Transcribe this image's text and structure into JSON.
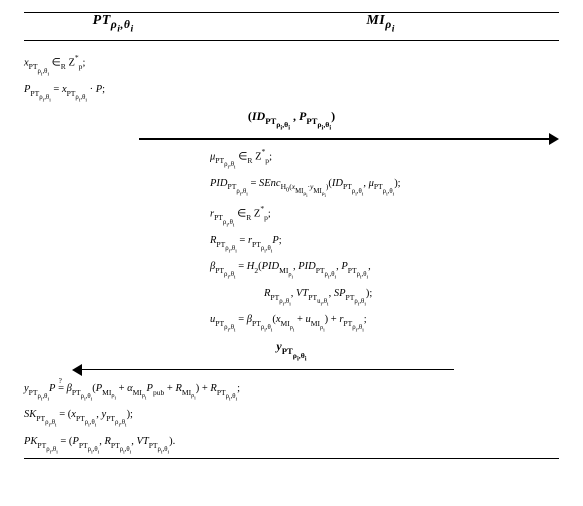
{
  "header": {
    "col1": "PT<sub>ρ<sub>i</sub>,θ<sub>i</sub></sub>",
    "col2": "MI<sub>ρ<sub>i</sub></sub>"
  },
  "lines": {
    "l1": "<i>x</i><span class='sub'>PT<span class='sub'>ρ<sub>i</sub>,θ<sub>i</sub></span></span>&nbsp;∈<span class='sub'>R</span>&nbsp;Z<span class='sup'>*</span><span class='sub'>p</span>;",
    "l2": "<i>P</i><span class='sub'>PT<span class='sub'>ρ<sub>i</sub>,θ<sub>i</sub></span></span>&nbsp;=&nbsp;<i>x</i><span class='sub'>PT<span class='sub'>ρ<sub>i</sub>,θ<sub>i</sub></span></span>&nbsp;·&nbsp;<i>P</i>;",
    "arrow1_label": "(<i>ID</i><span class='sub'>PT<span class='sub'>ρ<sub>i</sub>,θ<sub>i</sub></span></span>&nbsp;,&nbsp;<i>P</i><span class='sub'>PT<span class='sub'>ρ<sub>i</sub>,θ<sub>i</sub></span></span>)",
    "r1": "<i>μ</i><span class='sub'>PT<span class='sub'>ρ<sub>i</sub>,θ<sub>i</sub></span></span>&nbsp;∈<span class='sub'>R</span>&nbsp;Z<span class='sup'>*</span><span class='sub'>p</span>;",
    "r2": "<i>PID</i><span class='sub'>PT<span class='sub'>ρ<sub>i</sub>,θ<sub>i</sub></span></span>&nbsp;=&nbsp;<i>SEnc</i><span class='sub'>H<sub>0</sub>(<i>x</i><span class='sub'>MI<sub>ρ<sub>i</sub></sub></span>·<i>y</i><span class='sub'>MI<sub>ρ<sub>i</sub></sub></span>)</span>(<i>ID</i><span class='sub'>PT<span class='sub'>ρ<sub>i</sub>,θ<sub>i</sub></span></span>,&nbsp;<i>μ</i><span class='sub'>PT<span class='sub'>ρ<sub>i</sub>,θ<sub>i</sub></span></span>);",
    "r3": "<i>r</i><span class='sub'>PT<span class='sub'>ρ<sub>i</sub>,θ<sub>i</sub></span></span>&nbsp;∈<span class='sub'>R</span>&nbsp;Z<span class='sup'>*</span><span class='sub'>p</span>;",
    "r4": "<i>R</i><span class='sub'>PT<span class='sub'>ρ<sub>i</sub>,θ<sub>i</sub></span></span>&nbsp;=&nbsp;<i>r</i><span class='sub'>PT<span class='sub'>ρ<sub>i</sub>,θ<sub>i</sub></span></span><i>P</i>;",
    "r5": "<i>β</i><span class='sub'>PT<span class='sub'>ρ<sub>i</sub>,θ<sub>i</sub></span></span>&nbsp;=&nbsp;<i>H</i><span class='sub'>2</span>(<i>PID</i><span class='sub'>MI<sub>ρ<sub>i</sub></sub></span>,&nbsp;<i>PID</i><span class='sub'>PT<span class='sub'>ρ<sub>i</sub>,θ<sub>i</sub></span></span>,&nbsp;<i>P</i><span class='sub'>PT<span class='sub'>ρ<sub>i</sub>,θ<sub>i</sub></span></span>,",
    "r5b": "<i>R</i><span class='sub'>PT<span class='sub'>ρ<sub>i</sub>,θ<sub>i</sub></span></span>,&nbsp;<i>VT</i><span class='sub'>PT<span class='sub'>u<sub>i</sub>,θ<sub>i</sub></span></span>,&nbsp;<i>SP</i><span class='sub'>PT<span class='sub'>ρ<sub>i</sub>,θ<sub>i</sub></span></span>);",
    "r6": "<i>u</i><span class='sub'>PT<span class='sub'>ρ<sub>i</sub>,θ<sub>i</sub></span></span>&nbsp;=&nbsp;<i>β</i><span class='sub'>PT<span class='sub'>ρ<sub>i</sub>,θ<sub>i</sub></span></span>(<i>x</i><span class='sub'>MI<sub>ρ<sub>i</sub></sub></span>&nbsp;+&nbsp;<i>u</i><span class='sub'>MI<sub>ρ<sub>i</sub></sub></span>)&nbsp;+&nbsp;<i>r</i><span class='sub'>PT<span class='sub'>ρ<sub>i</sub>,θ<sub>i</sub></span></span>;",
    "arrow2_label": "<i>y</i><span class='sub'>PT<span class='sub'>ρ<sub>i</sub>,θ<sub>i</sub></span></span>",
    "b1": "<i>y</i><span class='sub'>PT<span class='sub'>ρ<sub>i</sub>,θ<sub>i</sub></span></span><i>P</i>&nbsp;<span class='qeq'>=</span>&nbsp;<i>β</i><span class='sub'>PT<span class='sub'>ρ<sub>i</sub>,θ<sub>i</sub></span></span>(<i>P</i><span class='sub'>MI<sub>ρ<sub>i</sub></sub></span>&nbsp;+&nbsp;<i>α</i><span class='sub'>MI<sub>ρ<sub>i</sub></sub></span><i>P</i><span class='sub'>pub</span>&nbsp;+&nbsp;<i>R</i><span class='sub'>MI<sub>ρ<sub>i</sub></sub></span>)&nbsp;+&nbsp;<i>R</i><span class='sub'>PT<span class='sub'>ρ<sub>i</sub>,θ<sub>i</sub></span></span>;",
    "b2": "<i>SK</i><span class='sub'>PT<span class='sub'>ρ<sub>i</sub>,θ<sub>i</sub></span></span>&nbsp;=&nbsp;(<i>x</i><span class='sub'>PT<span class='sub'>ρ<sub>i</sub>,θ<sub>i</sub></span></span>,&nbsp;<i>y</i><span class='sub'>PT<span class='sub'>ρ<sub>i</sub>,θ<sub>i</sub></span></span>);",
    "b3": "<i>PK</i><span class='sub'>PT<span class='sub'>ρ<sub>i</sub>,θ<sub>i</sub></span></span>&nbsp;=&nbsp;(<i>P</i><span class='sub'>PT<span class='sub'>ρ<sub>i</sub>,θ<sub>i</sub></span></span>,&nbsp;<i>R</i><span class='sub'>PT<span class='sub'>ρ<sub>i</sub>,θ<sub>i</sub></span></span>,&nbsp;<i>VT</i><span class='sub'>PT<span class='sub'>ρ<sub>i</sub>,θ<sub>i</sub></span></span>)."
  },
  "style": {
    "background": "#ffffff",
    "text_color": "#000000",
    "rule_color": "#000000",
    "header_fontsize_pt": 14,
    "body_fontsize_pt": 10.5,
    "arrow_label_fontsize_pt": 12,
    "grid_cols": "180px 1fr"
  }
}
